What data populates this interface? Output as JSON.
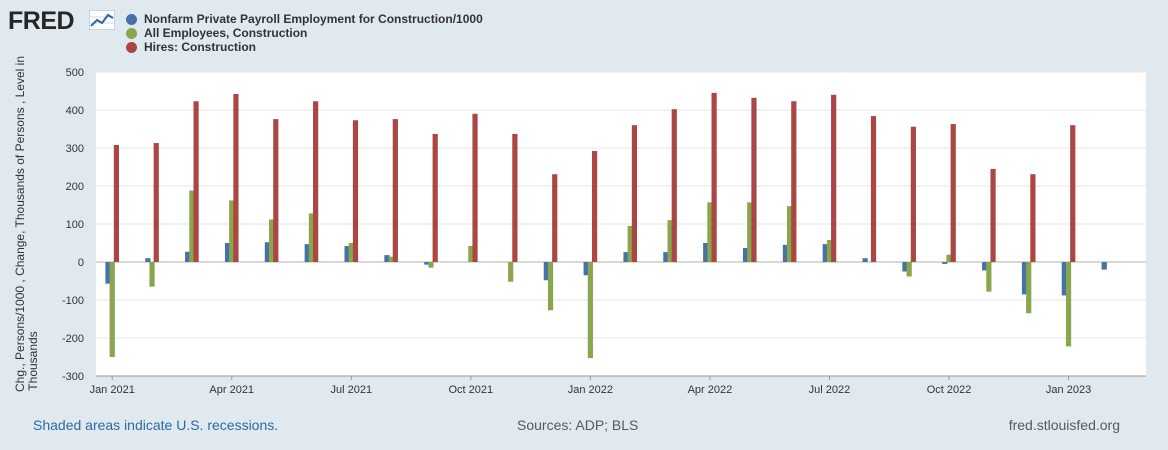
{
  "logo": {
    "text": "FRED"
  },
  "colors": {
    "series1": "#4572a7",
    "series2": "#89a54e",
    "series3": "#aa4643",
    "grid": "#e6e6e6",
    "plot_bg": "#ffffff"
  },
  "chart_data": {
    "type": "bar",
    "title": "",
    "ylabel": "Chg., Persons/1000 , Change, Thousands of Persons , Level in Thousands",
    "xlabel": "",
    "ylim": [
      -300,
      500
    ],
    "yticks": [
      -300,
      -200,
      -100,
      0,
      100,
      200,
      300,
      400,
      500
    ],
    "grid": true,
    "legend_position": "top-left",
    "categories": [
      "2021-01",
      "2021-02",
      "2021-03",
      "2021-04",
      "2021-05",
      "2021-06",
      "2021-07",
      "2021-08",
      "2021-09",
      "2021-10",
      "2021-11",
      "2021-12",
      "2022-01",
      "2022-02",
      "2022-03",
      "2022-04",
      "2022-05",
      "2022-06",
      "2022-07",
      "2022-08",
      "2022-09",
      "2022-10",
      "2022-11",
      "2022-12",
      "2023-01",
      "2023-02"
    ],
    "xtick_labels": [
      {
        "index": 0,
        "label": "Jan 2021"
      },
      {
        "index": 3,
        "label": "Apr 2021"
      },
      {
        "index": 6,
        "label": "Jul 2021"
      },
      {
        "index": 9,
        "label": "Oct 2021"
      },
      {
        "index": 12,
        "label": "Jan 2022"
      },
      {
        "index": 15,
        "label": "Apr 2022"
      },
      {
        "index": 18,
        "label": "Jul 2022"
      },
      {
        "index": 21,
        "label": "Oct 2022"
      },
      {
        "index": 24,
        "label": "Jan 2023"
      }
    ],
    "series": [
      {
        "name": "Nonfarm Private Payroll Employment for Construction/1000",
        "color": "#4572a7",
        "values": [
          -57,
          10,
          27,
          50,
          52,
          47,
          42,
          18,
          -7,
          null,
          null,
          -48,
          -35,
          26,
          26,
          50,
          37,
          45,
          47,
          10,
          -25,
          -5,
          -22,
          -85,
          -88,
          -20
        ]
      },
      {
        "name": "All Employees, Construction",
        "color": "#89a54e",
        "values": [
          -250,
          -65,
          188,
          162,
          112,
          128,
          50,
          14,
          -15,
          42,
          -52,
          -127,
          -253,
          95,
          110,
          157,
          157,
          147,
          58,
          null,
          -38,
          19,
          -78,
          -135,
          -222,
          null
        ]
      },
      {
        "name": "Hires: Construction",
        "color": "#aa4643",
        "values": [
          308,
          313,
          423,
          442,
          376,
          423,
          373,
          376,
          337,
          390,
          337,
          231,
          292,
          360,
          402,
          445,
          432,
          423,
          440,
          384,
          356,
          363,
          245,
          231,
          360,
          null
        ]
      }
    ]
  },
  "footer": {
    "recession_note": "Shaded areas indicate U.S. recessions.",
    "sources": "Sources: ADP; BLS",
    "site": "fred.stlouisfed.org"
  }
}
